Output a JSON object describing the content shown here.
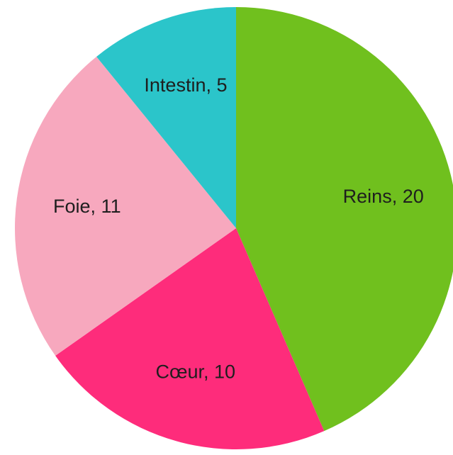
{
  "chart_data": {
    "type": "pie",
    "values": [
      20,
      10,
      11,
      5
    ],
    "value_labels": [
      "Reins, 20",
      "Cœur, 10",
      "Foie, 11",
      "Intestin, 5"
    ],
    "colors": [
      "#70c01e",
      "#fe2c7b",
      "#f7a8be",
      "#2bc5ca"
    ]
  }
}
